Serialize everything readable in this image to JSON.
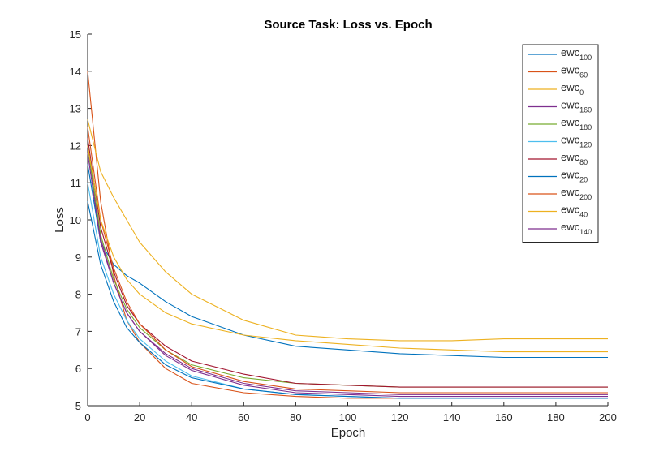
{
  "chart_data": {
    "type": "line",
    "title": "Source Task: Loss vs. Epoch",
    "xlabel": "Epoch",
    "ylabel": "Loss",
    "xlim": [
      0,
      200
    ],
    "ylim": [
      5,
      15
    ],
    "xticks": [
      "0",
      "20",
      "40",
      "60",
      "80",
      "100",
      "120",
      "140",
      "160",
      "180",
      "200"
    ],
    "yticks": [
      "5",
      "6",
      "7",
      "8",
      "9",
      "10",
      "11",
      "12",
      "13",
      "14",
      "15"
    ],
    "grid": false,
    "legend_position": "top-right",
    "legend_prefix": "ewc",
    "series": [
      {
        "name": "ewc100",
        "sub": "100",
        "color": "#0072BD",
        "x": [
          0,
          5,
          10,
          15,
          20,
          30,
          40,
          60,
          80,
          100,
          120,
          140,
          160,
          180,
          200
        ],
        "y": [
          11.5,
          9.4,
          8.8,
          8.5,
          8.3,
          7.8,
          7.4,
          6.9,
          6.6,
          6.5,
          6.4,
          6.35,
          6.3,
          6.3,
          6.3
        ]
      },
      {
        "name": "ewc60",
        "sub": "60",
        "color": "#D95319",
        "x": [
          0,
          5,
          10,
          15,
          20,
          30,
          40,
          60,
          80,
          100,
          120,
          140,
          160,
          180,
          200
        ],
        "y": [
          14.0,
          10.5,
          8.5,
          7.3,
          6.7,
          6.0,
          5.6,
          5.35,
          5.25,
          5.2,
          5.2,
          5.2,
          5.2,
          5.2,
          5.2
        ]
      },
      {
        "name": "ewc0",
        "sub": "0",
        "color": "#EDB120",
        "x": [
          0,
          5,
          10,
          15,
          20,
          30,
          40,
          60,
          80,
          100,
          120,
          140,
          160,
          180,
          200
        ],
        "y": [
          12.7,
          11.3,
          10.6,
          10.0,
          9.4,
          8.6,
          8.0,
          7.3,
          6.9,
          6.8,
          6.75,
          6.75,
          6.8,
          6.8,
          6.8
        ]
      },
      {
        "name": "ewc160",
        "sub": "160",
        "color": "#7E2F8E",
        "x": [
          0,
          5,
          10,
          15,
          20,
          30,
          40,
          60,
          80,
          100,
          120,
          140,
          160,
          180,
          200
        ],
        "y": [
          12.0,
          9.5,
          8.3,
          7.5,
          7.0,
          6.4,
          6.0,
          5.6,
          5.4,
          5.35,
          5.3,
          5.3,
          5.3,
          5.3,
          5.3
        ]
      },
      {
        "name": "ewc180",
        "sub": "180",
        "color": "#77AC30",
        "x": [
          0,
          5,
          10,
          15,
          20,
          30,
          40,
          60,
          80,
          100,
          120,
          140,
          160,
          180,
          200
        ],
        "y": [
          12.0,
          9.6,
          8.4,
          7.6,
          7.1,
          6.5,
          6.1,
          5.75,
          5.6,
          5.55,
          5.5,
          5.5,
          5.5,
          5.5,
          5.5
        ]
      },
      {
        "name": "ewc120",
        "sub": "120",
        "color": "#4DBEEE",
        "x": [
          0,
          5,
          10,
          15,
          20,
          30,
          40,
          60,
          80,
          100,
          120,
          140,
          160,
          180,
          200
        ],
        "y": [
          11.0,
          9.0,
          8.0,
          7.3,
          6.8,
          6.2,
          5.8,
          5.45,
          5.3,
          5.25,
          5.2,
          5.2,
          5.2,
          5.2,
          5.2
        ]
      },
      {
        "name": "ewc80",
        "sub": "80",
        "color": "#A2142F",
        "x": [
          0,
          5,
          10,
          15,
          20,
          30,
          40,
          60,
          80,
          100,
          120,
          140,
          160,
          180,
          200
        ],
        "y": [
          12.2,
          9.8,
          8.6,
          7.7,
          7.2,
          6.6,
          6.2,
          5.85,
          5.6,
          5.55,
          5.5,
          5.5,
          5.5,
          5.5,
          5.5
        ]
      },
      {
        "name": "ewc20",
        "sub": "20",
        "color": "#0072BD",
        "x": [
          0,
          5,
          10,
          15,
          20,
          30,
          40,
          60,
          80,
          100,
          120,
          140,
          160,
          180,
          200
        ],
        "y": [
          10.5,
          8.8,
          7.8,
          7.1,
          6.7,
          6.1,
          5.75,
          5.45,
          5.3,
          5.25,
          5.2,
          5.2,
          5.2,
          5.2,
          5.2
        ]
      },
      {
        "name": "ewc200",
        "sub": "200",
        "color": "#D95319",
        "x": [
          0,
          5,
          10,
          15,
          20,
          30,
          40,
          60,
          80,
          100,
          120,
          140,
          160,
          180,
          200
        ],
        "y": [
          12.5,
          10.0,
          8.7,
          7.8,
          7.2,
          6.5,
          6.05,
          5.65,
          5.45,
          5.4,
          5.35,
          5.35,
          5.35,
          5.35,
          5.35
        ]
      },
      {
        "name": "ewc40",
        "sub": "40",
        "color": "#EDB120",
        "x": [
          0,
          5,
          10,
          15,
          20,
          30,
          40,
          60,
          80,
          100,
          120,
          140,
          160,
          180,
          200
        ],
        "y": [
          12.0,
          10.0,
          9.0,
          8.4,
          8.0,
          7.5,
          7.2,
          6.9,
          6.75,
          6.65,
          6.55,
          6.5,
          6.45,
          6.45,
          6.45
        ]
      },
      {
        "name": "ewc140",
        "sub": "140",
        "color": "#7E2F8E",
        "x": [
          0,
          5,
          10,
          15,
          20,
          30,
          40,
          60,
          80,
          100,
          120,
          140,
          160,
          180,
          200
        ],
        "y": [
          11.8,
          9.4,
          8.3,
          7.5,
          7.0,
          6.35,
          5.95,
          5.55,
          5.35,
          5.3,
          5.25,
          5.25,
          5.25,
          5.25,
          5.25
        ]
      }
    ]
  }
}
